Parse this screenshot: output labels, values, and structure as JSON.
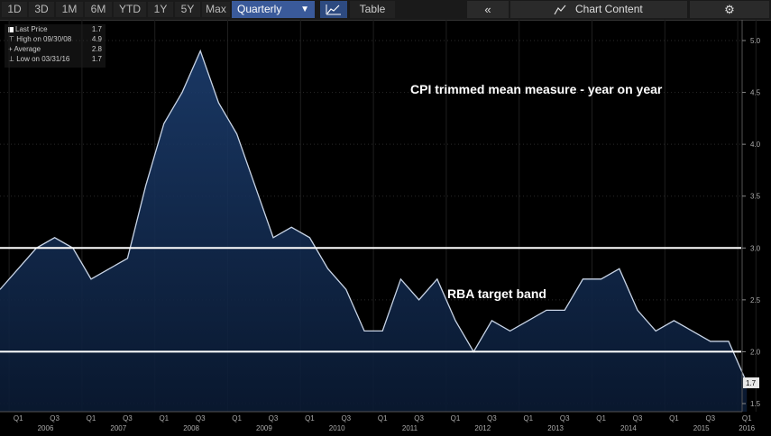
{
  "toolbar": {
    "ranges": [
      "1D",
      "3D",
      "1M",
      "6M",
      "YTD",
      "1Y",
      "5Y",
      "Max"
    ],
    "period_selected": "Quarterly",
    "table_label": "Table",
    "collapse_label": "«",
    "chart_content_label": "Chart Content",
    "settings_icon": "gear-icon"
  },
  "legend": {
    "last_price_label": "Last Price",
    "last_price_value": "1.7",
    "high_label": "High on 09/30/08",
    "high_value": "4.9",
    "average_label": "Average",
    "average_value": "2.8",
    "low_label": "Low on 03/31/16",
    "low_value": "1.7"
  },
  "colors": {
    "fill_top": "#1c3d6e",
    "fill_bottom": "#0a1a33",
    "line": "#c8d4e6",
    "band": "#ffffff"
  },
  "chart_data": {
    "type": "area",
    "annotations": [
      "CPI trimmed mean measure - year on year",
      "RBA target band"
    ],
    "x": [
      "2005Q4",
      "2006Q1",
      "2006Q2",
      "2006Q3",
      "2006Q4",
      "2007Q1",
      "2007Q2",
      "2007Q3",
      "2007Q4",
      "2008Q1",
      "2008Q2",
      "2008Q3",
      "2008Q4",
      "2009Q1",
      "2009Q2",
      "2009Q3",
      "2009Q4",
      "2010Q1",
      "2010Q2",
      "2010Q3",
      "2010Q4",
      "2011Q1",
      "2011Q2",
      "2011Q3",
      "2011Q4",
      "2012Q1",
      "2012Q2",
      "2012Q3",
      "2012Q4",
      "2013Q1",
      "2013Q2",
      "2013Q3",
      "2013Q4",
      "2014Q1",
      "2014Q2",
      "2014Q3",
      "2014Q4",
      "2015Q1",
      "2015Q2",
      "2015Q3",
      "2015Q4",
      "2016Q1"
    ],
    "values": [
      2.6,
      2.8,
      3.0,
      3.1,
      3.0,
      2.7,
      2.8,
      2.9,
      3.6,
      4.2,
      4.5,
      4.9,
      4.4,
      4.1,
      3.6,
      3.1,
      3.2,
      3.1,
      2.8,
      2.6,
      2.2,
      2.2,
      2.7,
      2.5,
      2.7,
      2.3,
      2.0,
      2.3,
      2.2,
      2.3,
      2.4,
      2.4,
      2.7,
      2.7,
      2.8,
      2.4,
      2.2,
      2.3,
      2.2,
      2.1,
      2.1,
      1.7
    ],
    "ylim": [
      1.4,
      5.1
    ],
    "yticks": [
      "1.5",
      "2.0",
      "2.5",
      "3.0",
      "3.5",
      "4.0",
      "4.5",
      "5.0"
    ],
    "target_band": [
      2.0,
      3.0
    ],
    "quarter_labels": [
      "Q1",
      "Q3",
      "Q1",
      "Q3",
      "Q1",
      "Q3",
      "Q1",
      "Q3",
      "Q1",
      "Q3",
      "Q1",
      "Q3",
      "Q1",
      "Q3",
      "Q1",
      "Q3",
      "Q1",
      "Q3",
      "Q1",
      "Q3",
      "Q1"
    ],
    "year_labels": [
      "2006",
      "2007",
      "2008",
      "2009",
      "2010",
      "2011",
      "2012",
      "2013",
      "2014",
      "2015",
      "2016"
    ],
    "last_value_label": "1.7",
    "grid": true
  }
}
